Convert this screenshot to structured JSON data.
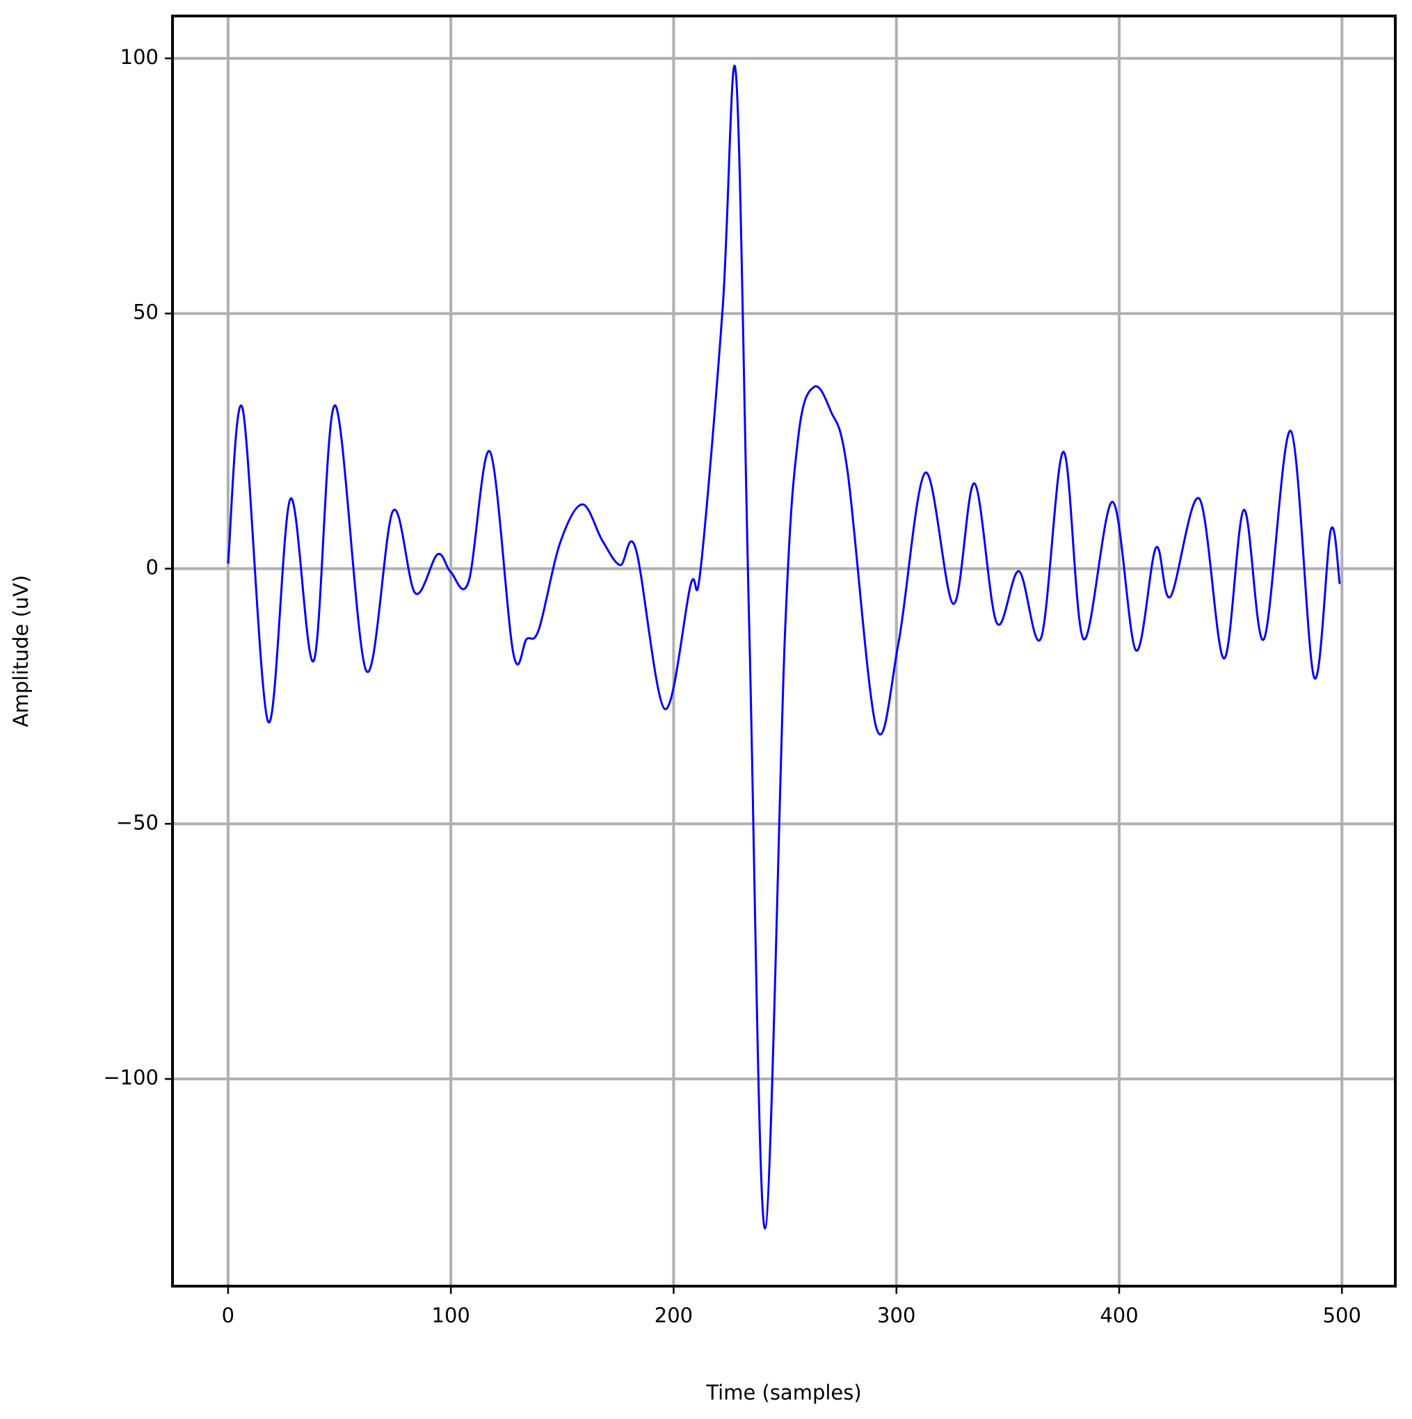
{
  "chart_data": {
    "type": "line",
    "xlabel": "Time (samples)",
    "ylabel": "Amplitude (uV)",
    "x": [
      0,
      6.5,
      18,
      28,
      38.5,
      48,
      62,
      74,
      84,
      94,
      100,
      108,
      117.6,
      128,
      134,
      139.5,
      149,
      159,
      168,
      176,
      183,
      196,
      207.6,
      212,
      222,
      228,
      234,
      241,
      250,
      256,
      263,
      270.5,
      278,
      291,
      301,
      313,
      325.6,
      335,
      345,
      355,
      365,
      375,
      384,
      397,
      407.5,
      416.5,
      423,
      436,
      447,
      456,
      465,
      477,
      487.5,
      495,
      499
    ],
    "series": [
      {
        "color": "#0000ff",
        "values": [
          1,
          31.4,
          -30,
          13.7,
          -18,
          32,
          -20,
          11.3,
          -4.8,
          2.8,
          -0.7,
          -2.5,
          22.9,
          -16.5,
          -13.8,
          -11.9,
          5,
          12.6,
          5.5,
          0.7,
          3.9,
          -27.5,
          -3.2,
          -0.5,
          51,
          96.8,
          -12.6,
          -129.3,
          -12.6,
          26,
          35.6,
          30.9,
          19.3,
          -31.2,
          -14.4,
          18.8,
          -6.9,
          16.7,
          -10.6,
          -0.5,
          -13.5,
          22.9,
          -13.8,
          13.1,
          -16,
          4.1,
          -5.5,
          13.7,
          -17.6,
          11.5,
          -13.8,
          27,
          -21.3,
          7.6,
          -3
        ]
      }
    ],
    "xlim": [
      -24.95,
      523.95
    ],
    "ylim": [
      -140.6,
      108.3
    ],
    "xticks": [
      0,
      100,
      200,
      300,
      400,
      500
    ],
    "yticks": [
      {
        "value": -100,
        "label": "−100"
      },
      {
        "value": -50,
        "label": "−50"
      },
      0,
      50,
      100
    ],
    "grid": true
  }
}
